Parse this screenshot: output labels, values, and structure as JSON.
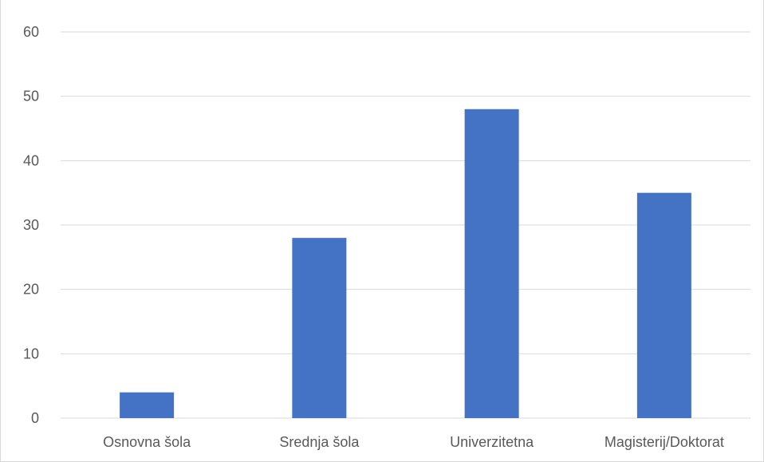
{
  "chart_data": {
    "type": "bar",
    "categories": [
      "Osnovna šola",
      "Srednja šola",
      "Univerzitetna",
      "Magisterij/Doktorat"
    ],
    "values": [
      4,
      28,
      48,
      35
    ],
    "ylim": [
      0,
      60
    ],
    "yticks": [
      0,
      10,
      20,
      30,
      40,
      50,
      60
    ],
    "grid": true,
    "bar_color": "#4472c4",
    "grid_color": "#d9d9d9",
    "label_color": "#595959"
  }
}
